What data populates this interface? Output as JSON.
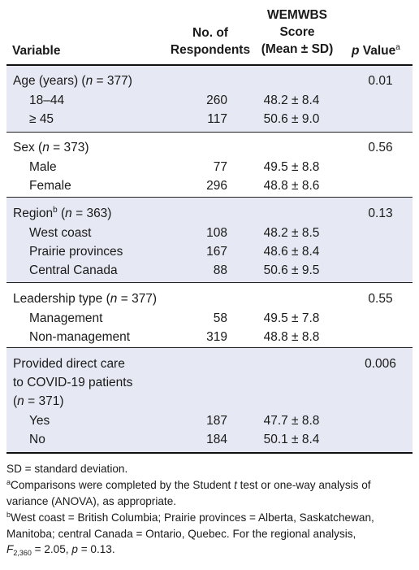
{
  "header": {
    "variable": "Variable",
    "respondents_line1": "No. of",
    "respondents_line2": "Respondents",
    "score_line1": "WEMWBS",
    "score_line2": "Score",
    "score_line3": "(Mean ± SD)",
    "pvalue_p": "p",
    "pvalue_rest": " Value",
    "pvalue_sup": "a"
  },
  "groups": [
    {
      "title_pre": "Age (years) (",
      "title_n": "n",
      "title_post": " = 377)",
      "p_value": "0.01",
      "rows": [
        {
          "label": "18–44",
          "n": "260",
          "score": "48.2 ± 8.4"
        },
        {
          "label": "≥ 45",
          "n": "117",
          "score": "50.6 ± 9.0"
        }
      ]
    },
    {
      "title_pre": "Sex (",
      "title_n": "n",
      "title_post": " = 373)",
      "p_value": "0.56",
      "rows": [
        {
          "label": "Male",
          "n": "77",
          "score": "49.5 ± 8.8"
        },
        {
          "label": "Female",
          "n": "296",
          "score": "48.8 ± 8.6"
        }
      ]
    },
    {
      "title_pre": "Region",
      "title_sup": "b",
      "title_pre2": " (",
      "title_n": "n",
      "title_post": " = 363)",
      "p_value": "0.13",
      "rows": [
        {
          "label": "West coast",
          "n": "108",
          "score": "48.2 ± 8.5"
        },
        {
          "label": "Prairie provinces",
          "n": "167",
          "score": "48.6 ± 8.4"
        },
        {
          "label": "Central Canada",
          "n": "88",
          "score": "50.6 ± 9.5"
        }
      ]
    },
    {
      "title_pre": "Leadership type (",
      "title_n": "n",
      "title_post": " = 377)",
      "p_value": "0.55",
      "rows": [
        {
          "label": "Management",
          "n": "58",
          "score": "49.5 ± 7.8"
        },
        {
          "label": "Non-management",
          "n": "319",
          "score": "48.8 ± 8.8"
        }
      ]
    },
    {
      "title_line1": "Provided direct care",
      "title_line2": "to COVID-19 patients",
      "title_line3_pre": "(",
      "title_n": "n",
      "title_post": " = 371)",
      "p_value": "0.006",
      "rows": [
        {
          "label": "Yes",
          "n": "187",
          "score": "47.7 ± 8.8"
        },
        {
          "label": "No",
          "n": "184",
          "score": "50.1 ± 8.4"
        }
      ]
    }
  ],
  "footnotes": {
    "sd": "SD = standard deviation.",
    "a_sup": "a",
    "a_pre": "Comparisons were completed by the Student ",
    "a_t": "t",
    "a_line1_post": " test or one-way analysis of",
    "a_line2": "variance (ANOVA), as appropriate.",
    "b_sup": "b",
    "b_line1": "West coast = British Columbia; Prairie provinces = Alberta, Saskatchewan,",
    "b_line2": "Manitoba; central Canada = Ontario, Quebec. For the regional analysis,",
    "b_F": "F",
    "b_F_sub": "2,360",
    "b_mid": " = 2.05, ",
    "b_p": "p",
    "b_end": " = 0.13."
  }
}
